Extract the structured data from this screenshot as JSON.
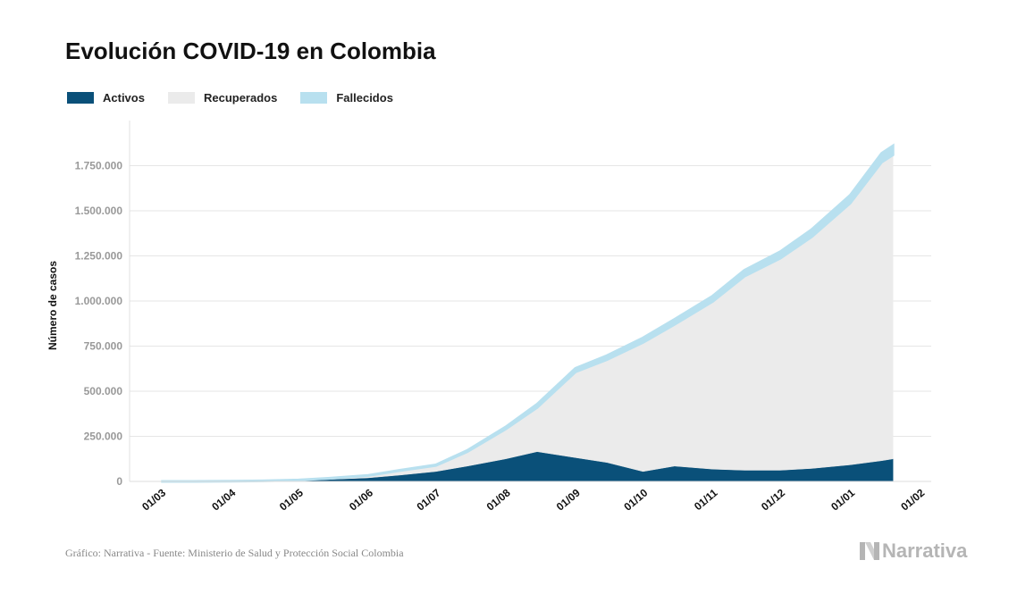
{
  "chart_data": {
    "type": "area",
    "title": "Evolución COVID-19 en Colombia",
    "ylabel": "Número de casos",
    "xlabel": "",
    "ylim": [
      0,
      2000000
    ],
    "yticks": [
      0,
      250000,
      500000,
      750000,
      1000000,
      1250000,
      1500000,
      1750000
    ],
    "ytick_labels": [
      "0",
      "250.000",
      "500.000",
      "750.000",
      "1.000.000",
      "1.250.000",
      "1.500.000",
      "1.750.000"
    ],
    "xtick_labels": [
      "01/03",
      "01/04",
      "01/05",
      "01/06",
      "01/07",
      "01/08",
      "01/09",
      "01/10",
      "01/11",
      "01/12",
      "01/01",
      "01/02"
    ],
    "xlim": [
      "01/03",
      "01/02"
    ],
    "stacked": true,
    "legend_position": "top-left",
    "grid": true,
    "x": [
      "01/03",
      "15/03",
      "01/04",
      "15/04",
      "01/05",
      "15/05",
      "01/06",
      "15/06",
      "01/07",
      "15/07",
      "01/08",
      "15/08",
      "01/09",
      "15/09",
      "01/10",
      "15/10",
      "01/11",
      "15/11",
      "01/12",
      "15/12",
      "01/01",
      "15/01",
      "20/01"
    ],
    "series": [
      {
        "name": "Activos",
        "color": "#0a5079",
        "values": [
          0,
          150,
          1000,
          2400,
          5000,
          11000,
          20000,
          35000,
          55000,
          85000,
          125000,
          165000,
          132000,
          105000,
          55000,
          85000,
          68000,
          62000,
          62000,
          72000,
          92000,
          115000,
          125000
        ]
      },
      {
        "name": "Recuperados",
        "color": "#ebebeb",
        "values": [
          0,
          0,
          50,
          700,
          2800,
          6500,
          12500,
          25000,
          33000,
          80000,
          165000,
          245000,
          475000,
          570000,
          715000,
          785000,
          930000,
          1075000,
          1175000,
          1285000,
          1450000,
          1655000,
          1685000
        ]
      },
      {
        "name": "Fallecidos",
        "color": "#b8e0ef",
        "values": [
          0,
          0,
          10,
          150,
          300,
          700,
          1000,
          1900,
          3500,
          6900,
          11800,
          18500,
          19700,
          22400,
          25300,
          28500,
          30000,
          33000,
          36500,
          40000,
          44000,
          48500,
          50000
        ]
      }
    ]
  },
  "footer": {
    "source": "Gráfico: Narrativa - Fuente: Ministerio de Salud y Protección Social Colombia",
    "logo": "Narrativa"
  }
}
